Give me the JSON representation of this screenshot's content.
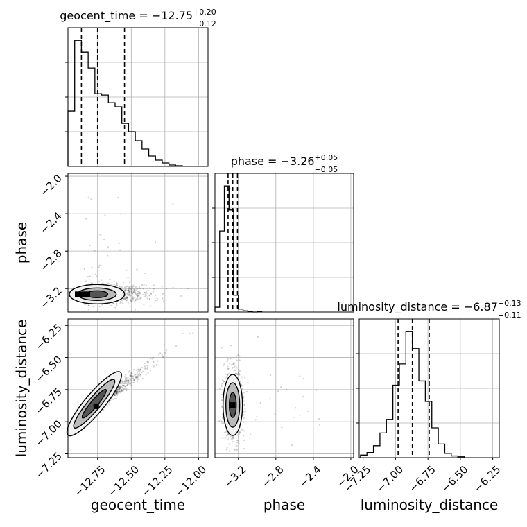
{
  "chart_data": {
    "type": "corner",
    "parameters": [
      "geocent_time",
      "phase",
      "luminosity_distance"
    ],
    "axis_labels": {
      "x": [
        "geocent_time",
        "phase",
        "luminosity_distance"
      ],
      "y": [
        "phase",
        "luminosity_distance"
      ]
    },
    "ranges": {
      "geocent_time": [
        -12.97,
        -11.93
      ],
      "phase": [
        -3.45,
        -1.97
      ],
      "luminosity_distance": [
        -7.28,
        -6.2
      ]
    },
    "ticks": {
      "geocent_time": {
        "values": [
          -12.75,
          -12.5,
          -12.25,
          -12.0
        ],
        "labels": [
          "−12.75",
          "−12.50",
          "−12.25",
          "−12.00"
        ]
      },
      "phase": {
        "values": [
          -3.2,
          -2.8,
          -2.4,
          -2.0
        ],
        "labels": [
          "−3.2",
          "−2.8",
          "−2.4",
          "−2.0"
        ]
      },
      "luminosity_distance": {
        "values": [
          -7.25,
          -7.0,
          -6.75,
          -6.5,
          -6.25
        ],
        "labels": [
          "−7.25",
          "−7.00",
          "−6.75",
          "−6.50",
          "−6.25"
        ]
      }
    },
    "histograms": {
      "geocent_time": {
        "bin_edges": [
          -12.97,
          -12.92,
          -12.87,
          -12.82,
          -12.77,
          -12.72,
          -12.67,
          -12.62,
          -12.57,
          -12.52,
          -12.47,
          -12.42,
          -12.37,
          -12.32,
          -12.27,
          -12.22,
          -12.17,
          -12.12
        ],
        "counts": [
          80,
          182,
          165,
          142,
          105,
          103,
          92,
          86,
          62,
          50,
          37,
          25,
          15,
          9,
          5,
          2,
          1
        ]
      },
      "phase": {
        "bin_edges": [
          -3.45,
          -3.4,
          -3.35,
          -3.3,
          -3.25,
          -3.2,
          -3.15,
          -3.1,
          -3.05,
          -3.0,
          -2.95
        ],
        "counts": [
          8,
          135,
          210,
          170,
          28,
          5,
          2,
          1,
          0,
          1
        ]
      },
      "luminosity_distance": {
        "bin_edges": [
          -7.27,
          -7.22,
          -7.17,
          -7.12,
          -7.07,
          -7.02,
          -6.97,
          -6.92,
          -6.87,
          -6.82,
          -6.77,
          -6.72,
          -6.67,
          -6.62,
          -6.57,
          -6.52,
          -6.47
        ],
        "counts": [
          3,
          6,
          14,
          29,
          45,
          85,
          110,
          148,
          128,
          90,
          66,
          35,
          16,
          5,
          2,
          1
        ]
      }
    },
    "quantiles": {
      "geocent_time": {
        "median": -12.75,
        "plus": 0.2,
        "minus": 0.12
      },
      "phase": {
        "median": -3.26,
        "plus": 0.05,
        "minus": 0.05
      },
      "luminosity_distance": {
        "median": -6.87,
        "plus": 0.13,
        "minus": 0.11
      }
    },
    "titles": {
      "geocent_time": {
        "text": "geocent_time = −12.75",
        "sup": "+0.20",
        "sub": "−0.12"
      },
      "phase": {
        "text": "phase = −3.26",
        "sup": "+0.05",
        "sub": "−0.05"
      },
      "luminosity_distance": {
        "text": "luminosity_distance = −6.87",
        "sup": "+0.13",
        "sub": "−0.11"
      }
    },
    "grid": true
  }
}
